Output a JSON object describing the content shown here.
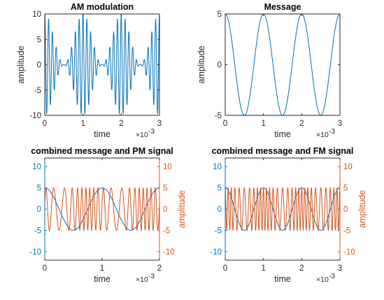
{
  "colors": {
    "blue": "#0072BD",
    "orange": "#D95319",
    "axis": "#262626",
    "title": "#000000"
  },
  "chart_data": [
    {
      "type": "line",
      "title": "AM modulation",
      "xlabel": "time",
      "ylabel": "amplitude",
      "x_multiplier": "×10",
      "x_multiplier_exp": "-3",
      "xlim": [
        0,
        3
      ],
      "ylim": [
        -10,
        10
      ],
      "xticks": [
        "0",
        "1",
        "2",
        "3"
      ],
      "yticks": [
        "-10",
        "-5",
        "0",
        "5",
        "10"
      ],
      "grid": false,
      "series": [
        {
          "color": "#0072BD",
          "formula": "5*(1+cos(2*pi*1000*t))*cos(2*pi*10000*t)",
          "t_unit": "ms",
          "samples_per_ms": 200
        }
      ]
    },
    {
      "type": "line",
      "title": "Message",
      "xlabel": "time",
      "ylabel": "amplitude",
      "x_multiplier": "×10",
      "x_multiplier_exp": "-3",
      "xlim": [
        0,
        3
      ],
      "ylim": [
        -5,
        5
      ],
      "xticks": [
        "0",
        "1",
        "2",
        "3"
      ],
      "yticks": [
        "-5",
        "0",
        "5"
      ],
      "grid": false,
      "series": [
        {
          "color": "#0072BD",
          "formula": "5*cos(2*pi*1000*t)",
          "t_unit": "ms",
          "samples_per_ms": 200
        }
      ]
    },
    {
      "type": "line",
      "title": "combined message and PM signal",
      "xlabel": "time",
      "ylabel_right": "amplitude",
      "x_multiplier": "×10",
      "x_multiplier_exp": "-3",
      "xlim": [
        0,
        2
      ],
      "ylim": [
        -12,
        12
      ],
      "xticks": [
        "0",
        "1",
        "2"
      ],
      "yticks_left": [
        "-10",
        "-5",
        "0",
        "5",
        "10"
      ],
      "yticks_right": [
        "-10",
        "-5",
        "0",
        "5",
        "10"
      ],
      "grid": false,
      "series": [
        {
          "color": "#0072BD",
          "axis": "left",
          "formula": "5*cos(2*pi*1000*t)",
          "t_unit": "ms",
          "samples_per_ms": 200
        },
        {
          "color": "#D95319",
          "axis": "right",
          "formula": "5*cos(2*pi*10000*t + 1.0*5*cos(2*pi*1000*t))",
          "t_unit": "ms",
          "samples_per_ms": 400
        }
      ]
    },
    {
      "type": "line",
      "title": "combined message and FM signal",
      "xlabel": "time",
      "ylabel_right": "amplitude",
      "x_multiplier": "×10",
      "x_multiplier_exp": "-3",
      "xlim": [
        0,
        3
      ],
      "ylim": [
        -12,
        12
      ],
      "xticks": [
        "0",
        "1",
        "2",
        "3"
      ],
      "yticks_left": [
        "-10",
        "-5",
        "0",
        "5",
        "10"
      ],
      "yticks_right": [
        "-10",
        "-5",
        "0",
        "5",
        "10"
      ],
      "grid": false,
      "series": [
        {
          "color": "#0072BD",
          "axis": "left",
          "formula": "5*cos(2*pi*1000*t)",
          "t_unit": "ms",
          "samples_per_ms": 200
        },
        {
          "color": "#D95319",
          "axis": "right",
          "formula": "5*cos(2*pi*10000*t + 3*sin(2*pi*1000*t))",
          "t_unit": "ms",
          "samples_per_ms": 400
        }
      ]
    }
  ]
}
